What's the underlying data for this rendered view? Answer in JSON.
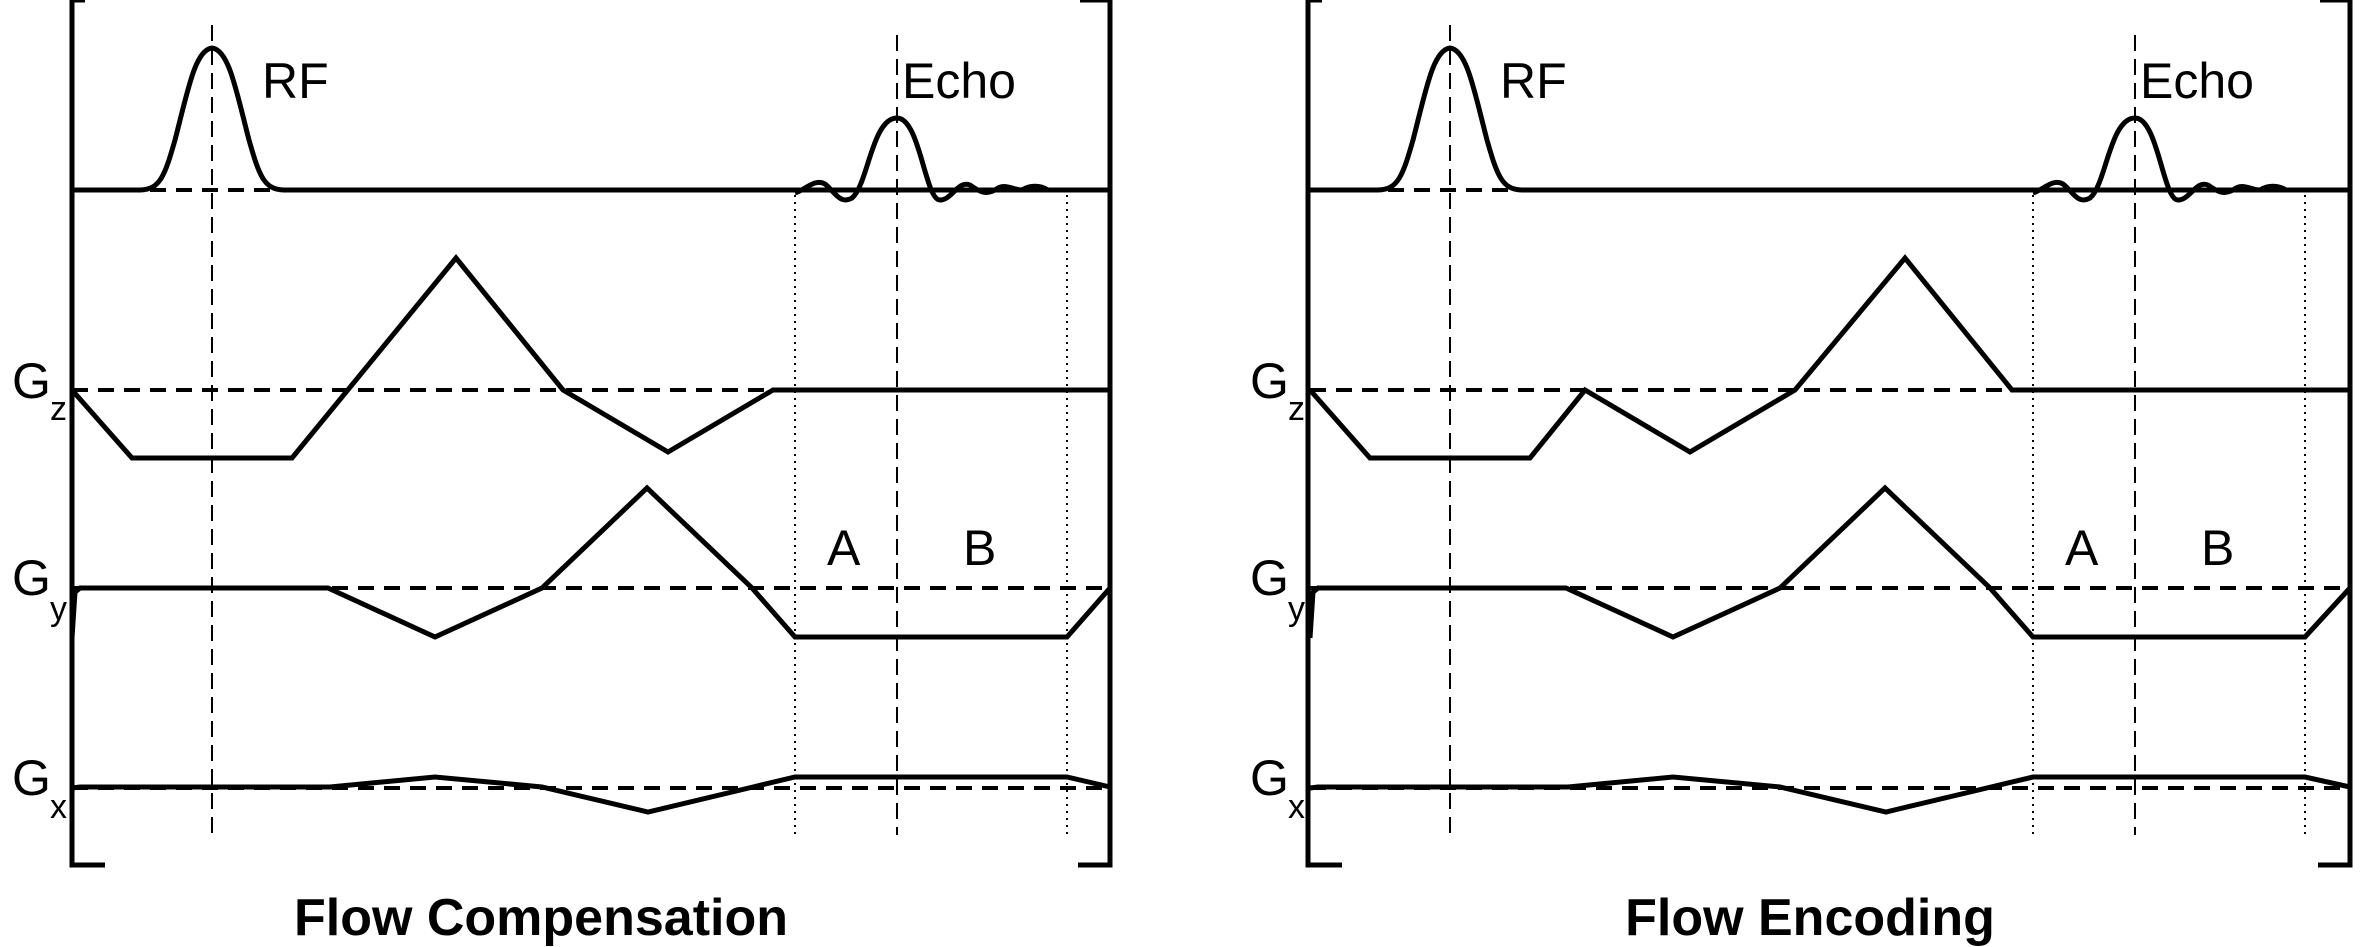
{
  "panels": [
    {
      "id": "compensation",
      "title": "Flow Compensation",
      "labels": {
        "rf": "RF",
        "echo": "Echo",
        "gz": "G",
        "gz_sub": "z",
        "gy": "G",
        "gy_sub": "y",
        "gx": "G",
        "gx_sub": "x",
        "a": "A",
        "b": "B"
      }
    },
    {
      "id": "encoding",
      "title": "Flow Encoding",
      "labels": {
        "rf": "RF",
        "echo": "Echo",
        "gz": "G",
        "gz_sub": "z",
        "gy": "G",
        "gy_sub": "y",
        "gx": "G",
        "gx_sub": "x",
        "a": "A",
        "b": "B"
      }
    }
  ]
}
